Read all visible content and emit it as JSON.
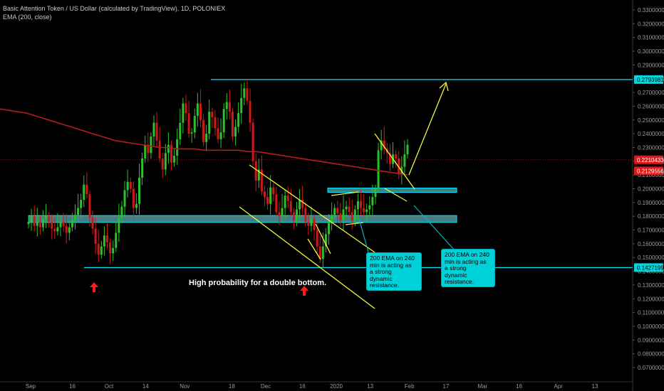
{
  "header": {
    "title": "Basic Attention Token / US Dollar (calculated by TradingView), 1D, POLONIEX",
    "indicator": "EMA (200, close)"
  },
  "colors": {
    "up": "#26a69a",
    "up_bright": "#22c422",
    "down": "#d01818",
    "ema": "#b71c1c",
    "cyan": "#00e5ff",
    "zone": "#7ee8f0",
    "yellow": "#f5f53a",
    "arrow": "#ff1a1a"
  },
  "price_tags": [
    {
      "value": "0.27939818",
      "label": "0.27939818",
      "bg": "#00d8e0",
      "fg": "#000000"
    },
    {
      "value": "0.22104339",
      "label": "0.22104339",
      "bg": "#e01818",
      "fg": "#ffffff"
    },
    {
      "value": "0.21295563",
      "label": "0.21295563",
      "bg": "#e01818",
      "fg": "#ffffff"
    },
    {
      "value": "0.14271999",
      "label": "0.14271999",
      "bg": "#00d8e0",
      "fg": "#000000"
    }
  ],
  "annotations": {
    "double_bottom": "High probability for a double bottom.",
    "callout_1": "200 EMA on 240\nmin is acting as\na strong\ndynamic\nresistance.",
    "callout_2": "200 EMA on 240\nmin is acting as\na strong\ndynamic\nresistance."
  },
  "chart_data": {
    "type": "candlestick",
    "title": "Basic Attention Token / US Dollar (calculated by TradingView), 1D, POLONIEX",
    "ylim": [
      0.07,
      0.335
    ],
    "y_ticks": [
      "0.07000000",
      "0.08000000",
      "0.09000000",
      "0.10000000",
      "0.11000000",
      "0.12000000",
      "0.13000000",
      "0.14000000",
      "0.15000000",
      "0.16000000",
      "0.17000000",
      "0.18000000",
      "0.19000000",
      "0.20000000",
      "0.21000000",
      "0.22000000",
      "0.23000000",
      "0.24000000",
      "0.25000000",
      "0.26000000",
      "0.27000000",
      "0.28000000",
      "0.29000000",
      "0.30000000",
      "0.31000000",
      "0.32000000",
      "0.33000000"
    ],
    "x_ticks": [
      "Sep",
      "16",
      "Oct",
      "14",
      "Nov",
      "18",
      "Dec",
      "16",
      "2020",
      "13",
      "Feb",
      "17",
      "Mar",
      "16",
      "Apr",
      "13"
    ],
    "x_tick_index": [
      0,
      16,
      30,
      44,
      59,
      77,
      90,
      104,
      117,
      130,
      145,
      159,
      173,
      187,
      202,
      216
    ],
    "series": [
      {
        "name": "BAT/USD",
        "ohlc_closes": [
          0.176,
          0.18,
          0.173,
          0.176,
          0.172,
          0.178,
          0.18,
          0.176,
          0.171,
          0.169,
          0.172,
          0.176,
          0.173,
          0.168,
          0.172,
          0.177,
          0.181,
          0.186,
          0.192,
          0.203,
          0.196,
          0.179,
          0.171,
          0.16,
          0.152,
          0.158,
          0.166,
          0.161,
          0.153,
          0.157,
          0.168,
          0.179,
          0.187,
          0.199,
          0.205,
          0.2,
          0.186,
          0.189,
          0.208,
          0.222,
          0.232,
          0.226,
          0.238,
          0.248,
          0.235,
          0.222,
          0.214,
          0.226,
          0.232,
          0.219,
          0.224,
          0.236,
          0.248,
          0.262,
          0.255,
          0.24,
          0.241,
          0.253,
          0.262,
          0.25,
          0.234,
          0.24,
          0.256,
          0.252,
          0.244,
          0.236,
          0.241,
          0.258,
          0.263,
          0.256,
          0.238,
          0.245,
          0.255,
          0.266,
          0.273,
          0.264,
          0.248,
          0.22,
          0.206,
          0.214,
          0.198,
          0.194,
          0.189,
          0.201,
          0.196,
          0.183,
          0.18,
          0.186,
          0.195,
          0.191,
          0.183,
          0.177,
          0.185,
          0.192,
          0.186,
          0.176,
          0.173,
          0.178,
          0.17,
          0.158,
          0.149,
          0.158,
          0.167,
          0.175,
          0.181,
          0.186,
          0.182,
          0.177,
          0.185,
          0.187,
          0.183,
          0.177,
          0.185,
          0.191,
          0.186,
          0.183,
          0.185,
          0.188,
          0.194,
          0.2,
          0.228,
          0.235,
          0.229,
          0.226,
          0.218,
          0.225,
          0.222,
          0.211,
          0.216,
          0.225,
          0.232
        ],
        "ema200": [
          0.258,
          0.257,
          0.256,
          0.255,
          0.253,
          0.251,
          0.249,
          0.247,
          0.245,
          0.243,
          0.241,
          0.239,
          0.237,
          0.235,
          0.234,
          0.233,
          0.232,
          0.231,
          0.23,
          0.23,
          0.229,
          0.229,
          0.229,
          0.228,
          0.228,
          0.228,
          0.228,
          0.228,
          0.227,
          0.227,
          0.226,
          0.225,
          0.224,
          0.223,
          0.222,
          0.221,
          0.22,
          0.219,
          0.218,
          0.217,
          0.216,
          0.215,
          0.214,
          0.213,
          0.212,
          0.211,
          0.21
        ]
      }
    ],
    "levels": [
      0.2794,
      0.1427
    ],
    "zones": [
      [
        0.1975,
        0.2005
      ],
      [
        0.1755,
        0.1805
      ]
    ]
  }
}
